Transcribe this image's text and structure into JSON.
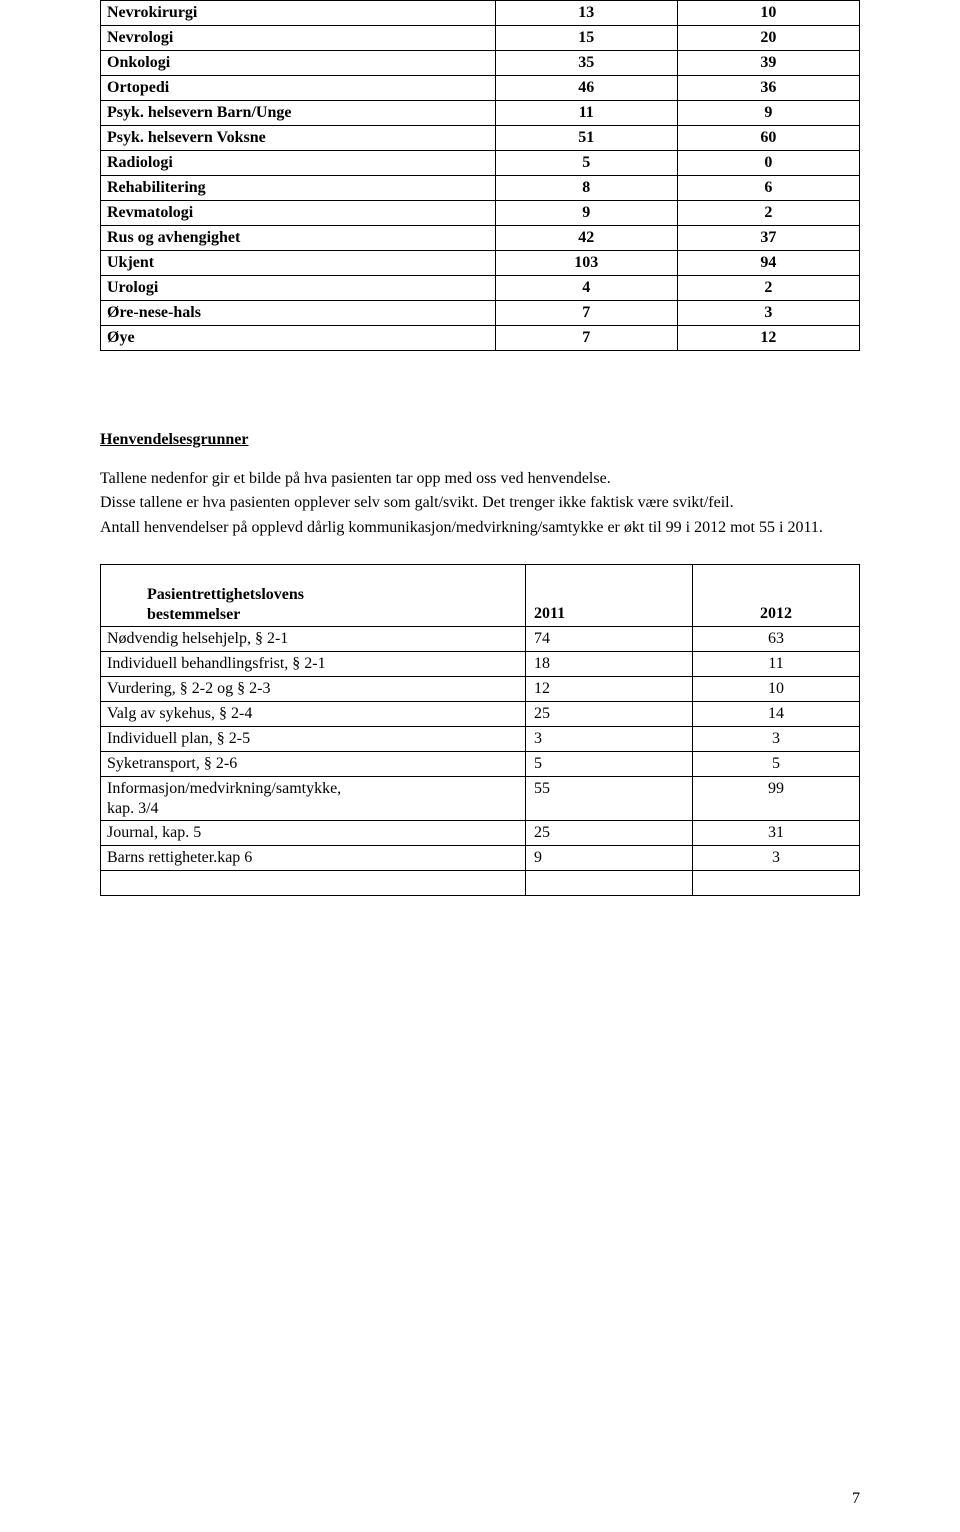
{
  "table1": {
    "rows": [
      {
        "label": "Nevrokirurgi",
        "c1": "13",
        "c2": "10"
      },
      {
        "label": "Nevrologi",
        "c1": "15",
        "c2": "20"
      },
      {
        "label": "Onkologi",
        "c1": "35",
        "c2": "39"
      },
      {
        "label": "Ortopedi",
        "c1": "46",
        "c2": "36"
      },
      {
        "label": "Psyk. helsevern Barn/Unge",
        "c1": "11",
        "c2": "9"
      },
      {
        "label": "Psyk. helsevern Voksne",
        "c1": "51",
        "c2": "60"
      },
      {
        "label": "Radiologi",
        "c1": "5",
        "c2": "0"
      },
      {
        "label": "Rehabilitering",
        "c1": "8",
        "c2": "6"
      },
      {
        "label": "Revmatologi",
        "c1": "9",
        "c2": "2"
      },
      {
        "label": "Rus og avhengighet",
        "c1": "42",
        "c2": "37"
      },
      {
        "label": "Ukjent",
        "c1": "103",
        "c2": "94"
      },
      {
        "label": "Urologi",
        "c1": "4",
        "c2": "2"
      },
      {
        "label": "Øre-nese-hals",
        "c1": "7",
        "c2": "3"
      },
      {
        "label": "Øye",
        "c1": "7",
        "c2": "12"
      }
    ]
  },
  "section_heading": "Henvendelsesgrunner",
  "para1": "Tallene nedenfor gir et bilde på hva pasienten tar opp med oss ved henvendelse.",
  "para2": "Disse tallene er hva pasienten opplever selv som galt/svikt. Det trenger ikke faktisk være svikt/feil.",
  "para3": "Antall henvendelser på opplevd dårlig kommunikasjon/medvirkning/samtykke er økt til 99 i 2012 mot 55 i 2011.",
  "table2": {
    "header": {
      "label_line1": "Pasientrettighetslovens",
      "label_line2": "bestemmelser",
      "c1": "2011",
      "c2": "2012"
    },
    "rows": [
      {
        "label": "Nødvendig helsehjelp, § 2-1",
        "c1": "74",
        "c2": "63"
      },
      {
        "label": "Individuell behandlingsfrist, § 2-1",
        "c1": "18",
        "c2": "11"
      },
      {
        "label": "Vurdering, § 2-2 og § 2-3",
        "c1": "12",
        "c2": "10"
      },
      {
        "label": "Valg av sykehus, § 2-4",
        "c1": "25",
        "c2": "14"
      },
      {
        "label": "Individuell plan, § 2-5",
        "c1": "3",
        "c2": "3"
      },
      {
        "label": "Syketransport, § 2-6",
        "c1": "5",
        "c2": "5"
      },
      {
        "label_line1": "Informasjon/medvirkning/samtykke,",
        "label_line2": "kap. 3/4",
        "c1": "55",
        "c2": "99",
        "multiline": true
      },
      {
        "label": "Journal, kap. 5",
        "c1": "25",
        "c2": "31"
      },
      {
        "label": "Barns rettigheter.kap 6",
        "c1": "9",
        "c2": "3"
      }
    ]
  },
  "page_number": "7"
}
